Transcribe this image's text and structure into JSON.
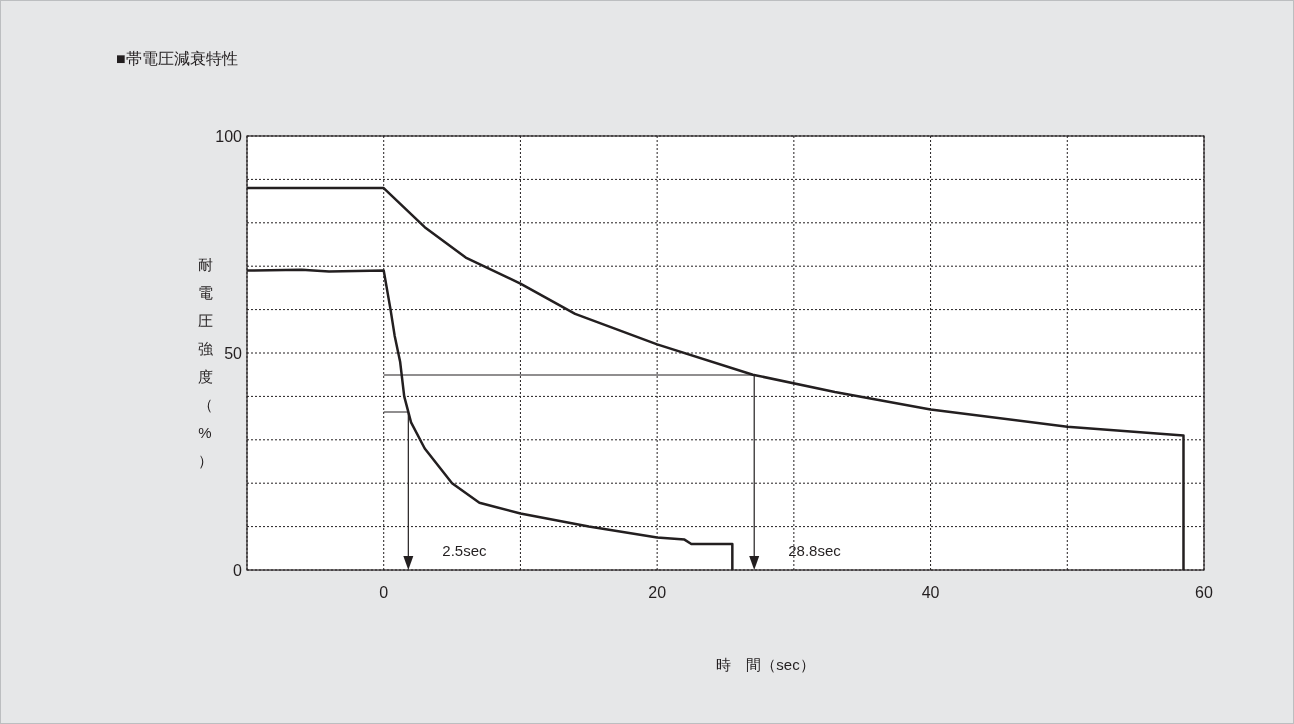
{
  "chart_data": {
    "type": "line",
    "title": "■帯電圧減衰特性",
    "xlabel": "時　間（sec）",
    "ylabel": "耐電圧強度（%）",
    "series": [
      {
        "color": "#231f20",
        "x": [
          -10,
          0,
          3,
          6,
          10,
          14,
          20,
          27,
          33,
          40,
          50,
          58.5,
          58.5
        ],
        "values": [
          88,
          88,
          79,
          72,
          66,
          59,
          52,
          45,
          41,
          37,
          33,
          31,
          0
        ]
      },
      {
        "color": "#231f20",
        "x": [
          -10,
          -6,
          -4,
          0,
          0.5,
          0.8,
          1.2,
          1.5,
          2,
          3,
          5,
          7,
          10,
          15,
          20,
          22,
          22.5,
          25.5,
          25.5
        ],
        "values": [
          69,
          69.2,
          68.8,
          69,
          60,
          54,
          48,
          40,
          34,
          28,
          20,
          15.5,
          13,
          10,
          7.5,
          7,
          6,
          6,
          0
        ]
      }
    ],
    "xlim": [
      -10,
      60
    ],
    "xticks": [
      {
        "value": -10,
        "label": null
      },
      0,
      {
        "value": 10,
        "label": null
      },
      20,
      {
        "value": 30,
        "label": null
      },
      40,
      {
        "value": 50,
        "label": null
      },
      60
    ],
    "ylim": [
      0,
      100
    ],
    "yticks": [
      0,
      {
        "value": 10,
        "label": null
      },
      {
        "value": 20,
        "label": null
      },
      {
        "value": 30,
        "label": null
      },
      {
        "value": 40,
        "label": null
      },
      50,
      {
        "value": 60,
        "label": null
      },
      {
        "value": 70,
        "label": null
      },
      {
        "value": 80,
        "label": null
      },
      {
        "value": 90,
        "label": null
      },
      100
    ],
    "grid": true,
    "line_style": "solid",
    "marker": "none",
    "ref_lines": [
      {
        "axis": "x",
        "value": 1.8,
        "label": "2.5sec"
      },
      {
        "axis": "x",
        "value": 27.1,
        "label": "28.8sec"
      }
    ]
  }
}
